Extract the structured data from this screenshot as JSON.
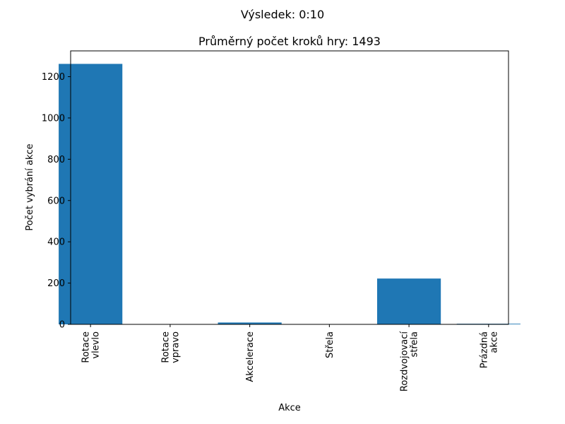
{
  "chart_data": {
    "type": "bar",
    "suptitle": "Výsledek: 0:10",
    "title": "Průměrný počet kroků hry: 1493",
    "xlabel": "Akce",
    "ylabel": "Počet vybrání akce",
    "categories": [
      [
        "Rotace",
        "vlevlo"
      ],
      [
        "Rotace",
        "vpravo"
      ],
      [
        "Akcelerace"
      ],
      [
        "Střela"
      ],
      [
        "Rozdvojovací",
        "střela"
      ],
      [
        "Prázdná",
        "akce"
      ]
    ],
    "values": [
      1262,
      0,
      9,
      0,
      222,
      3
    ],
    "ylim": [
      0,
      1325
    ],
    "yticks": [
      0,
      200,
      400,
      600,
      800,
      1000,
      1200
    ],
    "bar_color": "#1f77b4",
    "grid": false
  }
}
